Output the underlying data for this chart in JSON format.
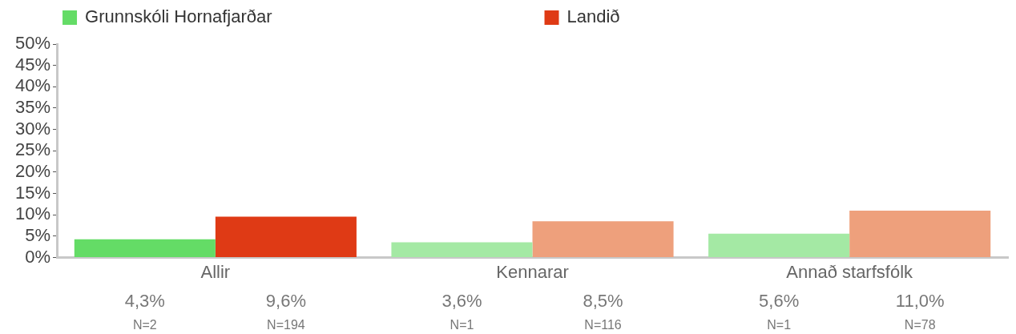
{
  "chart_data": {
    "type": "bar",
    "categories": [
      "Allir",
      "Kennarar",
      "Annað starfsfólk"
    ],
    "series": [
      {
        "name": "Grunnskóli Hornafjarðar",
        "color": "#64dc66",
        "colors": [
          "#64dc66",
          "#a4e9a4",
          "#a4e9a4"
        ],
        "values": [
          4.3,
          3.6,
          5.6
        ],
        "value_labels": [
          "4,3%\nN=2",
          "3,6%\nN=1",
          "5,6%\nN=1"
        ]
      },
      {
        "name": "Landið",
        "color": "#df3a15",
        "colors": [
          "#df3a15",
          "#eea07c",
          "#eea07c"
        ],
        "values": [
          9.6,
          8.5,
          11.0
        ],
        "value_labels": [
          "9,6%\nN=194",
          "8,5%\nN=116",
          "11,0%\nN=78"
        ]
      }
    ],
    "ylim": [
      0,
      50
    ],
    "yticks": [
      {
        "value": 0,
        "label": "0%"
      },
      {
        "value": 5,
        "label": "5%"
      },
      {
        "value": 10,
        "label": "10%"
      },
      {
        "value": 15,
        "label": "15%"
      },
      {
        "value": 20,
        "label": "20%"
      },
      {
        "value": 25,
        "label": "25%"
      },
      {
        "value": 30,
        "label": "30%"
      },
      {
        "value": 35,
        "label": "35%"
      },
      {
        "value": 40,
        "label": "40%"
      },
      {
        "value": 45,
        "label": "45%"
      },
      {
        "value": 50,
        "label": "50%"
      }
    ],
    "grid": false,
    "legend": "top"
  }
}
